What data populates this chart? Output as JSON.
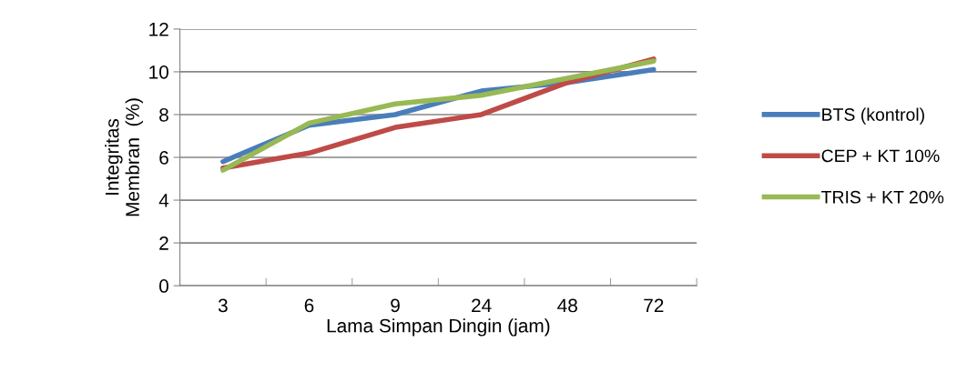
{
  "chart_data": {
    "type": "line",
    "xlabel": "Lama Simpan Dingin (jam)",
    "ylabel": "Integritas\nMembran  (%)",
    "categories": [
      "3",
      "6",
      "9",
      "24",
      "48",
      "72"
    ],
    "series": [
      {
        "name": "BTS (kontrol)",
        "color": "#4a7ebb",
        "values": [
          5.8,
          7.5,
          8.0,
          9.1,
          9.5,
          10.1
        ]
      },
      {
        "name": "CEP + KT 10%",
        "color": "#be4b48",
        "values": [
          5.5,
          6.2,
          7.4,
          8.0,
          9.5,
          10.6
        ]
      },
      {
        "name": "TRIS + KT 20%",
        "color": "#98b954",
        "values": [
          5.4,
          7.6,
          8.5,
          8.9,
          9.7,
          10.5
        ]
      }
    ],
    "ylim": [
      0,
      12
    ],
    "yticks": [
      0,
      2,
      4,
      6,
      8,
      10,
      12
    ],
    "grid": "y",
    "legend": "right",
    "marker": "none",
    "line_style": "solid"
  }
}
